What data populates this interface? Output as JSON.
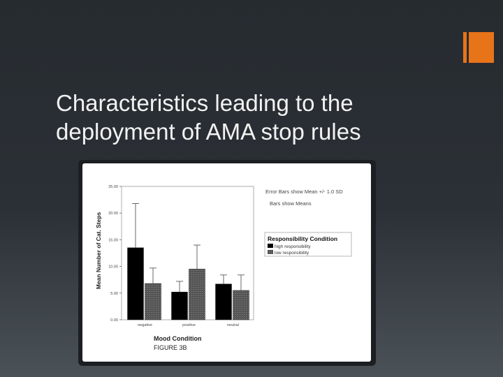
{
  "slide": {
    "title_line1": "Characteristics leading to the",
    "title_line2": "deployment of AMA stop rules"
  },
  "colors": {
    "accent": "#e8741a",
    "background": "#262b30",
    "high_bar": "#000000",
    "low_bar": "#555555"
  },
  "chart_data": {
    "type": "bar",
    "categories": [
      "negative",
      "positive",
      "neutral"
    ],
    "series": [
      {
        "name": "high responsibility",
        "values": [
          13.5,
          5.2,
          6.7
        ],
        "sd": [
          8.3,
          2.0,
          1.7
        ],
        "color": "#000000"
      },
      {
        "name": "low responsibility",
        "values": [
          6.8,
          9.5,
          5.5
        ],
        "sd": [
          2.9,
          4.5,
          2.9
        ],
        "color": "#555555"
      }
    ],
    "title": "",
    "xlabel": "Mood Condition",
    "ylabel": "Mean Number of Cat. Steps",
    "yticks": [
      "0.00",
      "5.00",
      "10.00",
      "15.00",
      "20.00",
      "25.00"
    ],
    "ylim": [
      0,
      25
    ],
    "legend_title": "Responsibility Condition",
    "legend_position": "right",
    "notes": [
      "Error Bars show Mean +/- 1.0 SD",
      "Bars show Means"
    ],
    "caption": "FIGURE 3B",
    "grid": false
  }
}
